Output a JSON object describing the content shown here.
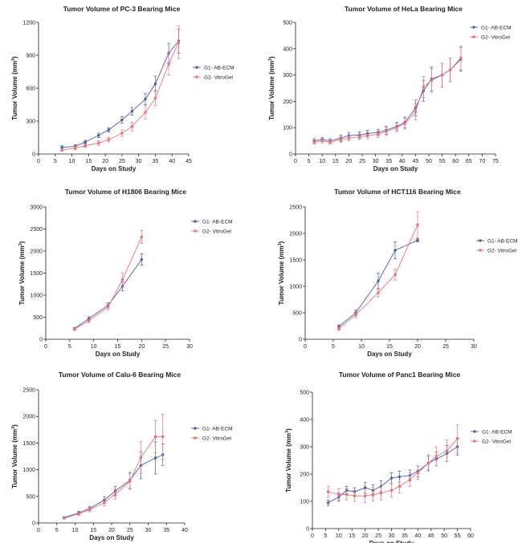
{
  "chart_data": [
    {
      "type": "line",
      "title": "Tumor Volume of PC-3 Bearing Mice",
      "xlabel": "Days on Study",
      "ylabel": "Tumor Volume (mm3)",
      "xlim": [
        0,
        45
      ],
      "xticks": [
        0,
        5,
        10,
        15,
        20,
        25,
        30,
        35,
        40,
        45
      ],
      "ylim": [
        0,
        1200
      ],
      "yticks": [
        0,
        300,
        600,
        900,
        1200
      ],
      "legend": "right",
      "series": [
        {
          "name": "G1- AB-ECM",
          "color": "#4a5fa8",
          "marker": "circle",
          "x": [
            7,
            11,
            14,
            18,
            21,
            25,
            28,
            32,
            35,
            39,
            42
          ],
          "y": [
            60,
            70,
            110,
            170,
            220,
            310,
            390,
            500,
            640,
            920,
            1030
          ],
          "err": [
            15,
            15,
            15,
            20,
            20,
            30,
            35,
            50,
            70,
            90,
            110
          ]
        },
        {
          "name": "G2- VitroGel",
          "color": "#e9747b",
          "marker": "square",
          "x": [
            7,
            11,
            14,
            18,
            21,
            25,
            28,
            32,
            35,
            39,
            42
          ],
          "y": [
            35,
            55,
            75,
            100,
            130,
            190,
            250,
            380,
            510,
            820,
            1020
          ],
          "err": [
            10,
            15,
            15,
            20,
            20,
            30,
            40,
            60,
            70,
            100,
            150
          ]
        }
      ]
    },
    {
      "type": "line",
      "title": "Tumor Volume of HeLa Bearing Mice",
      "xlabel": "Days on Study",
      "ylabel": "Tumor Volume (mm3)",
      "xlim": [
        0,
        75
      ],
      "xticks": [
        0,
        5,
        10,
        15,
        20,
        25,
        30,
        35,
        40,
        45,
        50,
        55,
        60,
        65,
        70,
        75
      ],
      "ylim": [
        0,
        500
      ],
      "yticks": [
        0,
        100,
        200,
        300,
        400,
        500
      ],
      "legend": "top-right",
      "series": [
        {
          "name": "G1- AB-ECM",
          "color": "#4a5fa8",
          "marker": "circle",
          "x": [
            7,
            10,
            13,
            17,
            20,
            24,
            27,
            31,
            34,
            38,
            41,
            45,
            48,
            51,
            55,
            58,
            62
          ],
          "y": [
            50,
            55,
            50,
            60,
            70,
            72,
            78,
            82,
            90,
            105,
            120,
            175,
            240,
            285,
            300,
            320,
            360
          ],
          "err": [
            8,
            8,
            8,
            12,
            12,
            12,
            12,
            12,
            15,
            15,
            20,
            30,
            40,
            45,
            45,
            45,
            45
          ]
        },
        {
          "name": "G2- VitroGel",
          "color": "#e9747b",
          "marker": "square",
          "x": [
            7,
            10,
            13,
            17,
            20,
            24,
            27,
            31,
            34,
            38,
            41,
            45,
            48,
            51,
            55,
            58,
            62
          ],
          "y": [
            45,
            50,
            45,
            55,
            60,
            65,
            70,
            75,
            85,
            100,
            115,
            160,
            255,
            280,
            300,
            320,
            365
          ],
          "err": [
            8,
            8,
            8,
            10,
            10,
            10,
            12,
            12,
            15,
            15,
            20,
            30,
            40,
            45,
            45,
            45,
            45
          ]
        }
      ]
    },
    {
      "type": "line",
      "title": "Tumor Volume of H1806 Bearing Mice",
      "xlabel": "Days on Study",
      "ylabel": "Tumor Volume (mm3)",
      "xlim": [
        0,
        30
      ],
      "xticks": [
        0,
        5,
        10,
        15,
        20,
        25,
        30
      ],
      "ylim": [
        0,
        3000
      ],
      "yticks": [
        0,
        500,
        1000,
        1500,
        2000,
        2500,
        3000
      ],
      "legend": "right",
      "series": [
        {
          "name": "G1- AB-ECM",
          "color": "#4a5fa8",
          "marker": "circle",
          "x": [
            6,
            9,
            13,
            16,
            20
          ],
          "y": [
            240,
            470,
            770,
            1200,
            1810
          ],
          "err": [
            30,
            40,
            60,
            100,
            130
          ]
        },
        {
          "name": "G2- VitroGel",
          "color": "#e9747b",
          "marker": "square",
          "x": [
            6,
            9,
            13,
            16,
            20
          ],
          "y": [
            230,
            420,
            730,
            1350,
            2320
          ],
          "err": [
            30,
            40,
            60,
            150,
            150
          ]
        }
      ]
    },
    {
      "type": "line",
      "title": "Tumor Volume of HCT116 Bearing Mice",
      "xlabel": "Days on Study",
      "ylabel": "Tumor Volume (mm3)",
      "xlim": [
        0,
        30
      ],
      "xticks": [
        0,
        5,
        10,
        15,
        20,
        25,
        30
      ],
      "ylim": [
        0,
        2500
      ],
      "yticks": [
        0,
        500,
        1000,
        1500,
        2000,
        2500
      ],
      "legend": "right",
      "series": [
        {
          "name": "G1- AB-ECM",
          "color": "#4a5fa8",
          "marker": "circle",
          "x": [
            6,
            9,
            13,
            16,
            20
          ],
          "y": [
            240,
            500,
            1100,
            1680,
            1870
          ],
          "err": [
            30,
            50,
            150,
            160,
            30
          ]
        },
        {
          "name": "G2- VitroGel",
          "color": "#e9747b",
          "marker": "square",
          "x": [
            6,
            9,
            13,
            16,
            20
          ],
          "y": [
            200,
            460,
            880,
            1220,
            2160
          ],
          "err": [
            30,
            50,
            80,
            100,
            250
          ]
        }
      ]
    },
    {
      "type": "line",
      "title": "Tumor Volume of Calu-6 Bearing Mice",
      "xlabel": "Days on Study",
      "ylabel": "Tumor Volume (mm3)",
      "xlim": [
        0,
        40
      ],
      "xticks": [
        0,
        5,
        10,
        15,
        20,
        25,
        30,
        35,
        40
      ],
      "ylim": [
        0,
        2500
      ],
      "yticks": [
        0,
        500,
        1000,
        1500,
        2000,
        2500
      ],
      "legend": "right",
      "series": [
        {
          "name": "G1- AB-ECM",
          "color": "#4a5fa8",
          "marker": "circle",
          "x": [
            7,
            11,
            14,
            18,
            21,
            25,
            28,
            32,
            34
          ],
          "y": [
            100,
            190,
            270,
            430,
            600,
            800,
            1080,
            1220,
            1280
          ],
          "err": [
            15,
            25,
            40,
            60,
            90,
            150,
            250,
            300,
            200
          ]
        },
        {
          "name": "G2- VitroGel",
          "color": "#e9747b",
          "marker": "square",
          "x": [
            7,
            11,
            14,
            18,
            21,
            25,
            28,
            32,
            34
          ],
          "y": [
            90,
            170,
            250,
            380,
            540,
            780,
            1230,
            1620,
            1620
          ],
          "err": [
            15,
            25,
            40,
            60,
            90,
            150,
            300,
            300,
            420
          ]
        }
      ]
    },
    {
      "type": "line",
      "title": "Tumor Volume of Panc1 Bearing Mice",
      "xlabel": "Days on Study",
      "ylabel": "Tumor Volume (mm3)",
      "xlim": [
        0,
        60
      ],
      "xticks": [
        0,
        5,
        10,
        15,
        20,
        25,
        30,
        35,
        40,
        45,
        50,
        55,
        60
      ],
      "ylim": [
        0,
        500
      ],
      "yticks": [
        0,
        100,
        200,
        300,
        400,
        500
      ],
      "legend": "top-right",
      "series": [
        {
          "name": "G1- AB-ECM",
          "color": "#4a5fa8",
          "marker": "circle",
          "x": [
            6,
            10,
            13,
            16,
            20,
            23,
            26,
            30,
            33,
            37,
            40,
            44,
            47,
            51,
            55
          ],
          "y": [
            95,
            115,
            140,
            135,
            150,
            140,
            155,
            185,
            190,
            195,
            210,
            240,
            255,
            275,
            300
          ],
          "err": [
            10,
            15,
            15,
            15,
            20,
            20,
            20,
            20,
            20,
            20,
            20,
            25,
            25,
            30,
            30
          ]
        },
        {
          "name": "G2- VitroGel",
          "color": "#e9747b",
          "marker": "square",
          "x": [
            6,
            10,
            13,
            16,
            20,
            23,
            26,
            30,
            33,
            37,
            40,
            44,
            47,
            51,
            55
          ],
          "y": [
            135,
            125,
            125,
            120,
            120,
            125,
            130,
            140,
            155,
            180,
            205,
            240,
            265,
            285,
            330
          ],
          "err": [
            20,
            20,
            20,
            20,
            25,
            25,
            25,
            25,
            25,
            25,
            25,
            30,
            35,
            40,
            50
          ]
        }
      ]
    }
  ]
}
